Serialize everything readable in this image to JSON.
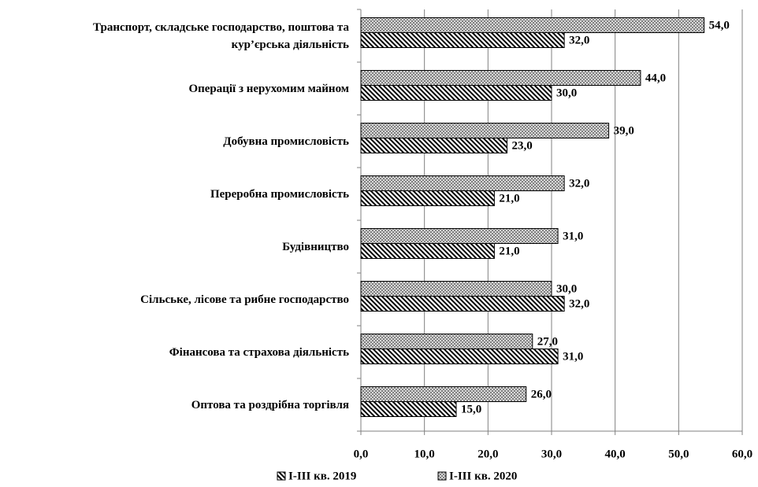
{
  "chart_data": {
    "type": "bar",
    "orientation": "horizontal",
    "categories": [
      "Транспорт, складське господарство, поштова та\nкур’єрська діяльність",
      "Операції з нерухомим майном",
      "Добувна промисловість",
      "Переробна промисловість",
      "Будівництво",
      "Сільське, лісове та рибне господарство",
      "Фінансова та страхова діяльність",
      "Оптова та роздрібна торгівля"
    ],
    "series": [
      {
        "name": "І-ІІІ кв. 2019",
        "color": "#000000",
        "values": [
          32,
          30,
          23,
          21,
          21,
          32,
          31,
          15
        ],
        "value_labels": [
          "32,0",
          "30,0",
          "23,0",
          "21,0",
          "21,0",
          "32,0",
          "31,0",
          "15,0"
        ]
      },
      {
        "name": "І-ІІІ кв. 2020",
        "color": "#808080",
        "values": [
          54,
          44,
          39,
          32,
          31,
          30,
          27,
          26
        ],
        "value_labels": [
          "54,0",
          "44,0",
          "39,0",
          "32,0",
          "31,0",
          "30,0",
          "27,0",
          "26,0"
        ]
      }
    ],
    "xlim": [
      0,
      60
    ],
    "xticks": [
      {
        "value": 0,
        "label": "0,0"
      },
      {
        "value": 10,
        "label": "10,0"
      },
      {
        "value": 20,
        "label": "20,0"
      },
      {
        "value": 30,
        "label": "30,0"
      },
      {
        "value": 40,
        "label": "40,0"
      },
      {
        "value": 50,
        "label": "50,0"
      },
      {
        "value": 60,
        "label": "60,0"
      }
    ],
    "grid": true,
    "legend": "bottom"
  }
}
